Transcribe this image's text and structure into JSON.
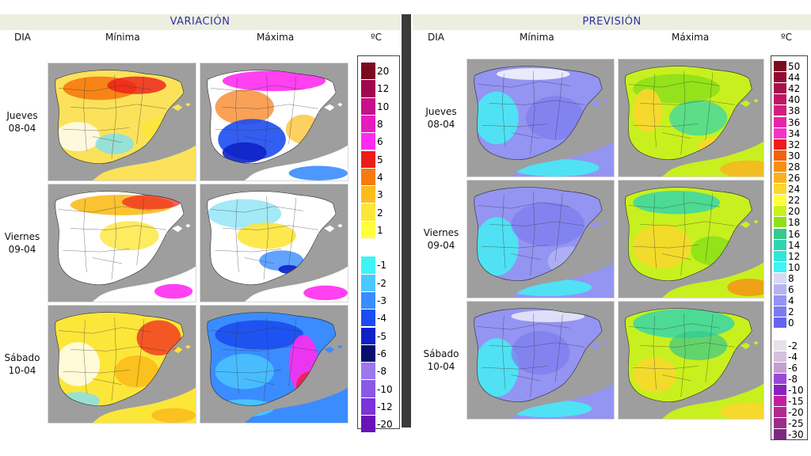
{
  "left": {
    "title": "VARIACIÓN",
    "col_day": "DIA",
    "col_min": "Mínima",
    "col_max": "Máxima",
    "unit": "ºC",
    "legend": [
      {
        "label": "20",
        "color": "#7a0a1e"
      },
      {
        "label": "12",
        "color": "#a0084e"
      },
      {
        "label": "10",
        "color": "#c8108c"
      },
      {
        "label": "8",
        "color": "#e61cbe"
      },
      {
        "label": "6",
        "color": "#ff2cf0"
      },
      {
        "label": "5",
        "color": "#ee1b1b"
      },
      {
        "label": "4",
        "color": "#f77a10"
      },
      {
        "label": "3",
        "color": "#fbbd1c"
      },
      {
        "label": "2",
        "color": "#fde63a"
      },
      {
        "label": "1",
        "color": "#ffff3a"
      },
      {
        "label": "",
        "color": "#ffffff"
      },
      {
        "label": "-1",
        "color": "#3ff4f4"
      },
      {
        "label": "-2",
        "color": "#4cc8ff"
      },
      {
        "label": "-3",
        "color": "#3a8cff"
      },
      {
        "label": "-4",
        "color": "#1c4cf0"
      },
      {
        "label": "-5",
        "color": "#0c22c8"
      },
      {
        "label": "-6",
        "color": "#06116e"
      },
      {
        "label": "-8",
        "color": "#9a78ee"
      },
      {
        "label": "-10",
        "color": "#8a58e6"
      },
      {
        "label": "-12",
        "color": "#7a34d8"
      },
      {
        "label": "-20",
        "color": "#6a14b8"
      }
    ]
  },
  "right": {
    "title": "PREVISIÓN",
    "col_day": "DIA",
    "col_min": "Mínima",
    "col_max": "Máxima",
    "unit": "ºC",
    "legend": [
      {
        "label": "50",
        "color": "#7a0a1e"
      },
      {
        "label": "44",
        "color": "#940a32"
      },
      {
        "label": "42",
        "color": "#a8104a"
      },
      {
        "label": "40",
        "color": "#c01664"
      },
      {
        "label": "38",
        "color": "#d41c82"
      },
      {
        "label": "36",
        "color": "#e626a6"
      },
      {
        "label": "34",
        "color": "#f432c8"
      },
      {
        "label": "32",
        "color": "#ee1b1b"
      },
      {
        "label": "30",
        "color": "#f2620e"
      },
      {
        "label": "28",
        "color": "#f88e14"
      },
      {
        "label": "26",
        "color": "#fbb020"
      },
      {
        "label": "24",
        "color": "#fcd62e"
      },
      {
        "label": "22",
        "color": "#ffff3a"
      },
      {
        "label": "20",
        "color": "#c8f01e"
      },
      {
        "label": "18",
        "color": "#8ee01a"
      },
      {
        "label": "16",
        "color": "#36c88c"
      },
      {
        "label": "14",
        "color": "#2ed4b2"
      },
      {
        "label": "12",
        "color": "#30e6d8"
      },
      {
        "label": "10",
        "color": "#3ff4f4"
      },
      {
        "label": "8",
        "color": "#d8d8f4"
      },
      {
        "label": "6",
        "color": "#b4b4f4"
      },
      {
        "label": "4",
        "color": "#9494f2"
      },
      {
        "label": "2",
        "color": "#7c7cf0"
      },
      {
        "label": "0",
        "color": "#6464ee"
      },
      {
        "label": "",
        "color": "#ffffff"
      },
      {
        "label": "-2",
        "color": "#e8e0ec"
      },
      {
        "label": "-4",
        "color": "#d6c0dc"
      },
      {
        "label": "-6",
        "color": "#c49ed0"
      },
      {
        "label": "-8",
        "color": "#9a48d6"
      },
      {
        "label": "-10",
        "color": "#8a20c0"
      },
      {
        "label": "-15",
        "color": "#c020a0"
      },
      {
        "label": "-20",
        "color": "#b02890"
      },
      {
        "label": "-25",
        "color": "#9c2c88"
      },
      {
        "label": "-30",
        "color": "#7c2a80"
      }
    ]
  },
  "days": [
    {
      "name": "Jueves",
      "date": "08-04"
    },
    {
      "name": "Viernes",
      "date": "09-04"
    },
    {
      "name": "Sábado",
      "date": "10-04"
    }
  ]
}
